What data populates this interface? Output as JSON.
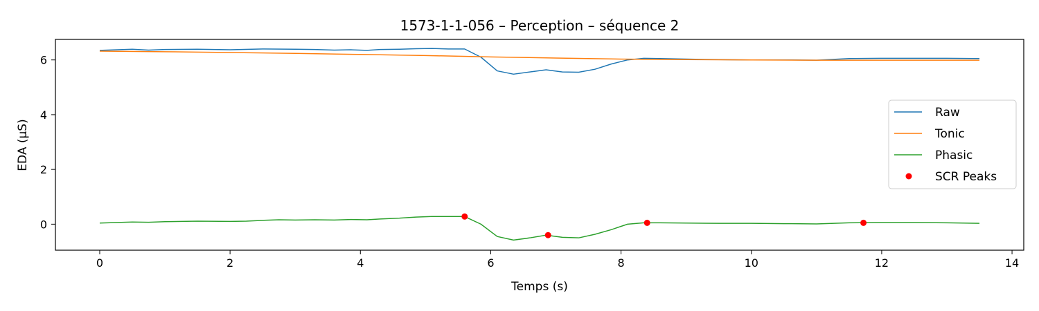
{
  "chart_data": {
    "type": "line",
    "title": "1573-1-1-056 – Perception – séquence 2",
    "xlabel": "Temps (s)",
    "ylabel": "EDA (µS)",
    "xlim": [
      -0.68,
      14.18
    ],
    "ylim": [
      -0.95,
      6.75
    ],
    "x_ticks": [
      0,
      2,
      4,
      6,
      8,
      10,
      12,
      14
    ],
    "y_ticks": [
      0,
      2,
      4,
      6
    ],
    "x_tick_labels": [
      "0",
      "2",
      "4",
      "6",
      "8",
      "10",
      "12",
      "14"
    ],
    "y_tick_labels": [
      "0",
      "2",
      "4",
      "6"
    ],
    "grid": false,
    "legend_position": "center-right",
    "series": [
      {
        "name": "Raw",
        "kind": "line",
        "color": "#1f77b4",
        "x": [
          0,
          0.5,
          0.75,
          1.0,
          1.5,
          2.0,
          2.5,
          3.0,
          3.3,
          3.6,
          3.85,
          4.1,
          4.3,
          4.6,
          4.85,
          5.1,
          5.35,
          5.6,
          5.85,
          6.1,
          6.35,
          6.6,
          6.85,
          7.1,
          7.35,
          7.6,
          7.85,
          8.1,
          8.35,
          8.6,
          9.0,
          9.5,
          10.0,
          10.5,
          11.0,
          11.5,
          12.0,
          12.5,
          13.0,
          13.5
        ],
        "y": [
          6.35,
          6.39,
          6.36,
          6.38,
          6.39,
          6.37,
          6.4,
          6.39,
          6.38,
          6.36,
          6.37,
          6.35,
          6.38,
          6.39,
          6.41,
          6.42,
          6.4,
          6.4,
          6.1,
          5.6,
          5.48,
          5.56,
          5.64,
          5.56,
          5.55,
          5.66,
          5.85,
          6.0,
          6.06,
          6.05,
          6.03,
          6.01,
          6.0,
          6.0,
          5.99,
          6.05,
          6.06,
          6.06,
          6.06,
          6.05
        ]
      },
      {
        "name": "Tonic",
        "kind": "line",
        "color": "#ff7f0e",
        "x": [
          0,
          1,
          2,
          3,
          4,
          5,
          6,
          7,
          8,
          9,
          10,
          11,
          12,
          13,
          13.5
        ],
        "y": [
          6.32,
          6.3,
          6.27,
          6.24,
          6.2,
          6.16,
          6.11,
          6.07,
          6.03,
          6.01,
          6.0,
          5.99,
          5.99,
          5.99,
          5.99
        ]
      },
      {
        "name": "Phasic",
        "kind": "line",
        "color": "#2ca02c",
        "x": [
          0,
          0.25,
          0.5,
          0.75,
          1.0,
          1.5,
          2.0,
          2.25,
          2.5,
          2.75,
          3.0,
          3.3,
          3.6,
          3.85,
          4.1,
          4.3,
          4.6,
          4.85,
          5.1,
          5.35,
          5.6,
          5.85,
          6.1,
          6.35,
          6.6,
          6.85,
          7.1,
          7.35,
          7.6,
          7.85,
          8.1,
          8.35,
          8.6,
          9.0,
          9.5,
          10.0,
          10.5,
          11.0,
          11.5,
          12.0,
          12.5,
          13.0,
          13.5
        ],
        "y": [
          0.04,
          0.06,
          0.08,
          0.07,
          0.09,
          0.11,
          0.1,
          0.11,
          0.14,
          0.16,
          0.15,
          0.16,
          0.15,
          0.17,
          0.16,
          0.19,
          0.22,
          0.26,
          0.28,
          0.28,
          0.28,
          0.0,
          -0.45,
          -0.58,
          -0.5,
          -0.4,
          -0.48,
          -0.5,
          -0.37,
          -0.2,
          0.0,
          0.05,
          0.05,
          0.04,
          0.03,
          0.03,
          0.02,
          0.01,
          0.05,
          0.06,
          0.06,
          0.05,
          0.03
        ]
      },
      {
        "name": "SCR Peaks",
        "kind": "scatter",
        "color": "#ff0000",
        "x": [
          5.6,
          6.88,
          8.4,
          11.72
        ],
        "y": [
          0.28,
          -0.4,
          0.05,
          0.05
        ]
      }
    ]
  }
}
